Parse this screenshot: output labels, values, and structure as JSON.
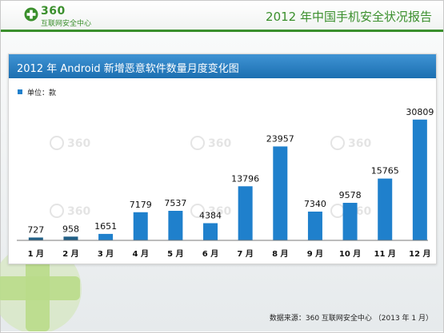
{
  "header": {
    "logo_number": "360",
    "logo_subtitle": "互联网安全中心",
    "report_title": "2012 年中国手机安全状况报告"
  },
  "watermark": {
    "text": "360"
  },
  "chart_data": {
    "type": "bar",
    "title": "2012 年 Android 新增恶意软件数量月度变化图",
    "unit_label": "单位：款",
    "categories": [
      "1 月",
      "2 月",
      "3 月",
      "4 月",
      "5 月",
      "6 月",
      "7 月",
      "8 月",
      "9 月",
      "10 月",
      "11 月",
      "12 月"
    ],
    "series": [
      {
        "values": [
          727,
          958,
          1651,
          7179,
          7537,
          4384,
          13796,
          23957,
          7340,
          9578,
          15765,
          30809
        ]
      }
    ],
    "ylim": [
      0,
      33000
    ],
    "bar_color": "#1f80cc",
    "highlight_color": "#215f86",
    "highlight_months": [
      "1 月",
      "2 月"
    ],
    "grid": false
  },
  "footer": {
    "source": "数据来源：360 互联网安全中心 （2013 年 1 月）"
  },
  "colors": {
    "accent_green": "#3a8f2c",
    "header_blue": "#2b82c4"
  }
}
